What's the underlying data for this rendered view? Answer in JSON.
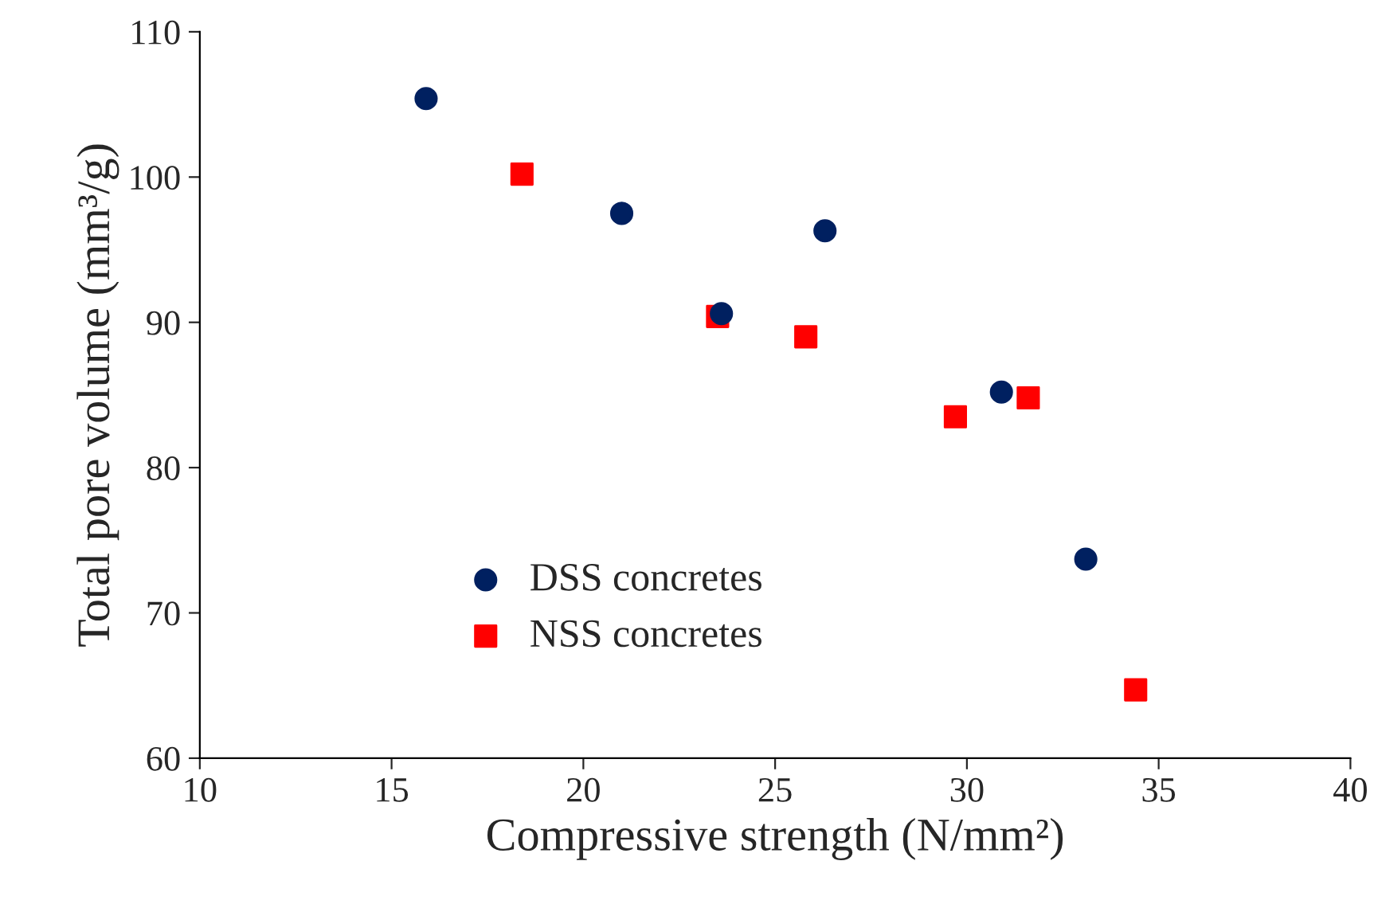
{
  "chart_data": {
    "type": "scatter",
    "xlabel": "Compressive strength (N/mm²)",
    "ylabel": "Total pore volume (mm³/g)",
    "xlim": [
      10,
      40
    ],
    "xticks": [
      10,
      15,
      20,
      25,
      30,
      35,
      40
    ],
    "ylim": [
      60,
      110
    ],
    "yticks": [
      60,
      70,
      80,
      90,
      100,
      110
    ],
    "grid": false,
    "legend": "bottom left",
    "series": [
      {
        "name": "DSS concretes",
        "color": "#002060",
        "marker": "circle",
        "x": [
          15.9,
          21.0,
          23.6,
          26.3,
          30.9,
          33.1
        ],
        "values": [
          105.4,
          97.5,
          90.6,
          96.3,
          85.2,
          73.7
        ]
      },
      {
        "name": "NSS concretes",
        "color": "#ff0000",
        "marker": "square",
        "x": [
          18.4,
          23.5,
          25.8,
          29.7,
          31.6,
          34.4
        ],
        "values": [
          100.2,
          90.4,
          89.0,
          83.5,
          84.8,
          64.7
        ]
      }
    ]
  }
}
